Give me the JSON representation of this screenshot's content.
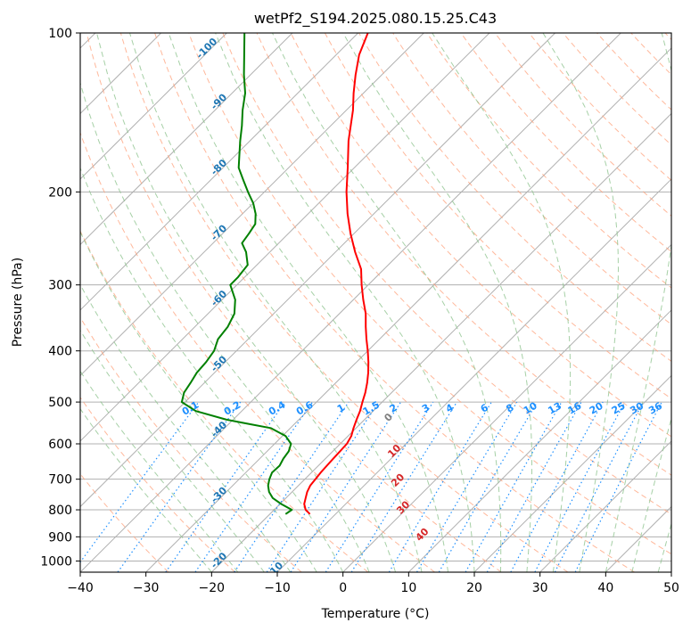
{
  "chart_data": {
    "type": "line",
    "diagram": "skew-T log-P",
    "title": "wetPf2_S194.2025.080.15.25.C43",
    "xlabel": "Temperature (°C)",
    "ylabel": "Pressure (hPa)",
    "xlim": [
      -40,
      50
    ],
    "ylim": [
      1050,
      100
    ],
    "y_scale": "log",
    "grid": true,
    "x_ticks": [
      -40,
      -30,
      -20,
      -10,
      0,
      10,
      20,
      30,
      40,
      50
    ],
    "y_ticks": [
      100,
      200,
      300,
      400,
      500,
      600,
      700,
      800,
      900,
      1000
    ],
    "series": [
      {
        "role": "temperature",
        "color": "#ff0000",
        "points": [
          [
            815,
            -13.9
          ],
          [
            800,
            -15.2
          ],
          [
            780,
            -16.3
          ],
          [
            760,
            -17.0
          ],
          [
            740,
            -17.7
          ],
          [
            720,
            -18.2
          ],
          [
            700,
            -18.4
          ],
          [
            680,
            -18.6
          ],
          [
            660,
            -18.7
          ],
          [
            640,
            -18.8
          ],
          [
            620,
            -18.9
          ],
          [
            600,
            -19.0
          ],
          [
            580,
            -19.5
          ],
          [
            560,
            -20.4
          ],
          [
            540,
            -21.2
          ],
          [
            520,
            -22.0
          ],
          [
            500,
            -23.0
          ],
          [
            480,
            -24.0
          ],
          [
            460,
            -25.2
          ],
          [
            440,
            -26.6
          ],
          [
            420,
            -28.2
          ],
          [
            400,
            -30.0
          ],
          [
            380,
            -32.0
          ],
          [
            360,
            -34.0
          ],
          [
            340,
            -36.0
          ],
          [
            320,
            -38.5
          ],
          [
            300,
            -41.0
          ],
          [
            280,
            -43.5
          ],
          [
            260,
            -47.0
          ],
          [
            240,
            -50.5
          ],
          [
            220,
            -54.0
          ],
          [
            200,
            -57.5
          ],
          [
            180,
            -61.0
          ],
          [
            160,
            -65.0
          ],
          [
            140,
            -69.0
          ],
          [
            130,
            -71.5
          ],
          [
            120,
            -74.0
          ],
          [
            110,
            -76.5
          ],
          [
            100,
            -78.5
          ]
        ]
      },
      {
        "role": "dewpoint",
        "color": "#008000",
        "points": [
          [
            815,
            -17.6
          ],
          [
            800,
            -17.3
          ],
          [
            780,
            -19.8
          ],
          [
            760,
            -22.0
          ],
          [
            740,
            -23.5
          ],
          [
            720,
            -24.6
          ],
          [
            700,
            -25.4
          ],
          [
            680,
            -26.0
          ],
          [
            660,
            -25.9
          ],
          [
            640,
            -26.4
          ],
          [
            620,
            -26.7
          ],
          [
            600,
            -27.5
          ],
          [
            580,
            -29.5
          ],
          [
            560,
            -33.0
          ],
          [
            550,
            -37.0
          ],
          [
            540,
            -41.0
          ],
          [
            520,
            -47.0
          ],
          [
            500,
            -50.5
          ],
          [
            480,
            -51.6
          ],
          [
            460,
            -52.1
          ],
          [
            440,
            -52.7
          ],
          [
            420,
            -52.9
          ],
          [
            400,
            -53.4
          ],
          [
            380,
            -54.6
          ],
          [
            360,
            -55.0
          ],
          [
            340,
            -56.0
          ],
          [
            320,
            -58.0
          ],
          [
            300,
            -61.0
          ],
          [
            290,
            -61.0
          ],
          [
            275,
            -61.4
          ],
          [
            260,
            -63.6
          ],
          [
            250,
            -65.6
          ],
          [
            240,
            -66.0
          ],
          [
            230,
            -66.5
          ],
          [
            220,
            -68.0
          ],
          [
            210,
            -70.0
          ],
          [
            200,
            -72.5
          ],
          [
            190,
            -75.0
          ],
          [
            180,
            -77.6
          ],
          [
            170,
            -79.5
          ],
          [
            160,
            -81.5
          ],
          [
            150,
            -83.5
          ],
          [
            140,
            -85.8
          ],
          [
            130,
            -88.0
          ],
          [
            120,
            -91.0
          ],
          [
            110,
            -94.0
          ],
          [
            100,
            -97.3
          ]
        ]
      }
    ],
    "isotherm_labels": [
      -100,
      -90,
      -80,
      -70,
      -60,
      -50,
      -40,
      -30,
      -20,
      -10
    ],
    "mixing_ratio_labels": [
      "0.1",
      "0.2",
      "0.4",
      "0.6",
      "1",
      "1.5",
      "2",
      "3",
      "4",
      "6",
      "8",
      "10",
      "13",
      "16",
      "20",
      "25",
      "30",
      "36"
    ],
    "moist_adiabat_labels": [
      "0",
      "10",
      "20",
      "30",
      "40"
    ],
    "colors": {
      "temperature_line": "#ff0000",
      "dewpoint_line": "#008000",
      "dry_adiabats": "#ffa07a",
      "moist_adiabats": "#90c490",
      "mixing_ratio": "#1e90ff",
      "isotherm_labels": "#1f77b4",
      "moist_labels": "#d62728",
      "grid": "#b0b0b0"
    }
  }
}
